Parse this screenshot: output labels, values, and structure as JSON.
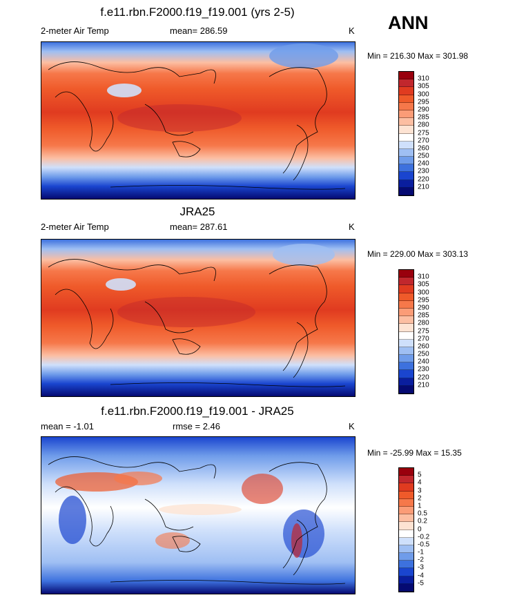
{
  "ann_label": "ANN",
  "units": "K",
  "panels": [
    {
      "title": "f.e11.rbn.F2000.f19_f19.001 (yrs 2-5)",
      "left_label": "2-meter Air Temp",
      "center_label": "mean= 286.59",
      "minmax": "Min = 216.30 Max = 301.98",
      "levels": [
        "310",
        "305",
        "300",
        "295",
        "290",
        "285",
        "280",
        "275",
        "270",
        "260",
        "250",
        "240",
        "230",
        "220",
        "210"
      ]
    },
    {
      "title": "JRA25",
      "left_label": "2-meter Air Temp",
      "center_label": "mean= 287.61",
      "minmax": "Min = 229.00 Max = 303.13",
      "levels": [
        "310",
        "305",
        "300",
        "295",
        "290",
        "285",
        "280",
        "275",
        "270",
        "260",
        "250",
        "240",
        "230",
        "220",
        "210"
      ]
    },
    {
      "title": "f.e11.rbn.F2000.f19_f19.001 - JRA25",
      "left_label": "mean =  -1.01",
      "center_label": "rmse =   2.46",
      "minmax": "Min = -25.99 Max =  15.35",
      "levels": [
        "5",
        "4",
        "3",
        "2",
        "1",
        "0.5",
        "0.2",
        "0",
        "-0.2",
        "-0.5",
        "-1",
        "-2",
        "-3",
        "-4",
        "-5"
      ]
    }
  ],
  "colors": {
    "abs_scale": [
      "#99000d",
      "#c1272d",
      "#e03b20",
      "#ef5a2a",
      "#f6784a",
      "#fb9c77",
      "#fcbea2",
      "#fde3d3",
      "#ffffff",
      "#cfe0fb",
      "#9fbff3",
      "#6f9cea",
      "#3d71de",
      "#1a45cf",
      "#0a1e9e",
      "#050a72"
    ],
    "diff_scale": [
      "#99000d",
      "#c1272d",
      "#e03b20",
      "#ef5a2a",
      "#f6784a",
      "#fb9c77",
      "#fcbea2",
      "#fde3d3",
      "#ffffff",
      "#cfe0fb",
      "#9fbff3",
      "#6f9cea",
      "#3d71de",
      "#1a45cf",
      "#0a1e9e",
      "#050a72"
    ]
  }
}
